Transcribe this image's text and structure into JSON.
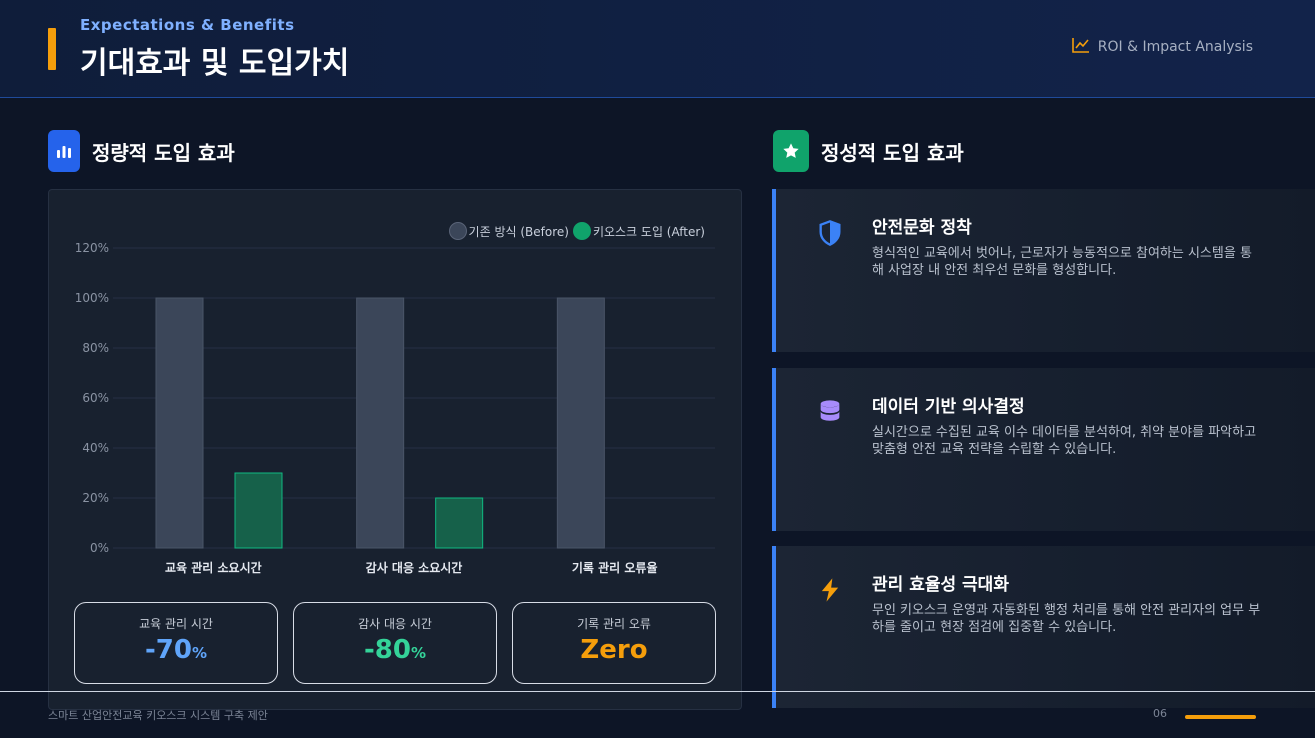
{
  "header": {
    "subtitle": "Expectations & Benefits",
    "title": "기대효과 및 도입가치",
    "badge": "ROI & Impact Analysis",
    "badge_icon": "line-chart-icon",
    "accent_color": "#f59e0b"
  },
  "left_section": {
    "title": "정량적 도입 효과",
    "icon": "bar-chart-icon",
    "icon_bg": "#2563eb"
  },
  "right_section": {
    "title": "정성적 도입 효과",
    "icon": "star-icon",
    "icon_bg": "#10a36b"
  },
  "chart_data": {
    "type": "bar",
    "categories": [
      "교육 관리 소요시간",
      "감사 대응 소요시간",
      "기록 관리 오류율"
    ],
    "series": [
      {
        "name": "기존 방식 (Before)",
        "values": [
          100,
          100,
          100
        ],
        "color": "#3b4659"
      },
      {
        "name": "키오스크 도입 (After)",
        "values": [
          30,
          20,
          0
        ],
        "color": "#10a36b"
      }
    ],
    "y_ticks": [
      "0%",
      "20%",
      "40%",
      "60%",
      "80%",
      "100%",
      "120%"
    ],
    "ylim": [
      0,
      120
    ],
    "grid": true,
    "legend_position": "top-right"
  },
  "stats": [
    {
      "label": "교육 관리 시간",
      "value": "-70",
      "unit": "%",
      "color": "#60a5fa"
    },
    {
      "label": "감사 대응 시간",
      "value": "-80",
      "unit": "%",
      "color": "#34d399"
    },
    {
      "label": "기록 관리 오류",
      "value": "Zero",
      "unit": "",
      "color": "#f59e0b"
    }
  ],
  "cards": [
    {
      "title": "안전문화 정착",
      "icon": "shield-icon",
      "icon_color": "#3b82f6",
      "desc": "형식적인 교육에서 벗어나, 근로자가 능동적으로 참여하는 시스템을 통해 사업장 내 안전 최우선 문화를 형성합니다."
    },
    {
      "title": "데이터 기반 의사결정",
      "icon": "database-icon",
      "icon_color": "#a78bfa",
      "desc": "실시간으로 수집된 교육 이수 데이터를 분석하여, 취약 분야를 파악하고 맞춤형 안전 교육 전략을 수립할 수 있습니다."
    },
    {
      "title": "관리 효율성 극대화",
      "icon": "lightning-icon",
      "icon_color": "#f59e0b",
      "desc": "무인 키오스크 운영과 자동화된 행정 처리를 통해 안전 관리자의 업무 부하를 줄이고 현장 점검에 집중할 수 있습니다."
    }
  ],
  "footer": {
    "text": "스마트 산업안전교육 키오스크 시스템 구축 제안",
    "page": "06"
  }
}
